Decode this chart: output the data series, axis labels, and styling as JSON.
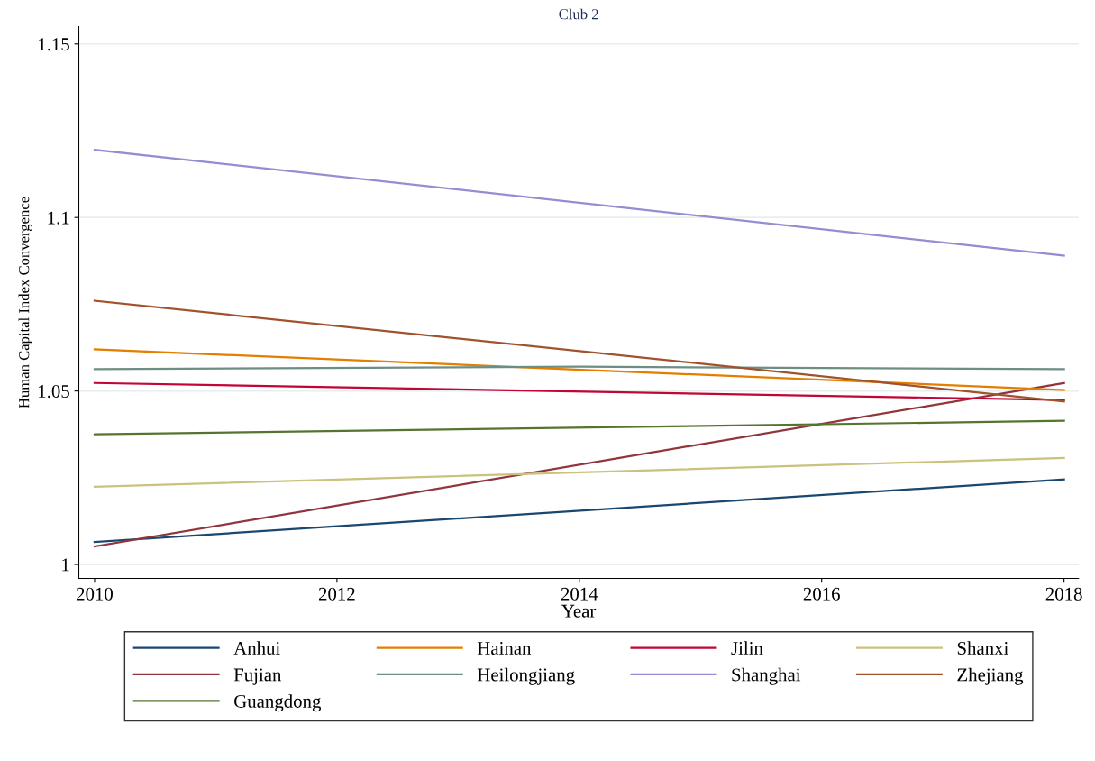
{
  "chart_data": {
    "type": "line",
    "title": "Club 2",
    "xlabel": "Year",
    "ylabel": "Human Capital Index Convergence",
    "x": [
      2010,
      2018
    ],
    "series": [
      {
        "name": "Anhui",
        "color": "#1a476f",
        "values": [
          1.0065,
          1.0245
        ]
      },
      {
        "name": "Fujian",
        "color": "#90353b",
        "values": [
          1.0052,
          1.0523
        ]
      },
      {
        "name": "Guangdong",
        "color": "#55752f",
        "values": [
          1.0375,
          1.0414
        ]
      },
      {
        "name": "Hainan",
        "color": "#e37e00",
        "values": [
          1.062,
          1.0503
        ]
      },
      {
        "name": "Heilongjiang",
        "color": "#6e8e84",
        "x": [
          2010,
          2014,
          2018
        ],
        "values": [
          1.0563,
          1.057,
          1.0563
        ]
      },
      {
        "name": "Jilin",
        "color": "#c10534",
        "values": [
          1.0523,
          1.0474
        ]
      },
      {
        "name": "Shanghai",
        "color": "#938dd2",
        "values": [
          1.1195,
          1.089
        ]
      },
      {
        "name": "Shanxi",
        "color": "#cac27e",
        "values": [
          1.0224,
          1.0307
        ]
      },
      {
        "name": "Zhejiang",
        "color": "#a0522d",
        "values": [
          1.076,
          1.047
        ]
      }
    ],
    "xlim": [
      2009.87,
      2018.12
    ],
    "xticks": [
      2010,
      2012,
      2014,
      2016,
      2018
    ],
    "ylim": [
      0.996,
      1.155
    ],
    "yticks": [
      1,
      1.05,
      1.1,
      1.15
    ],
    "grid": "y",
    "legend": "bottom",
    "marker": "none",
    "line_style": "solid"
  }
}
